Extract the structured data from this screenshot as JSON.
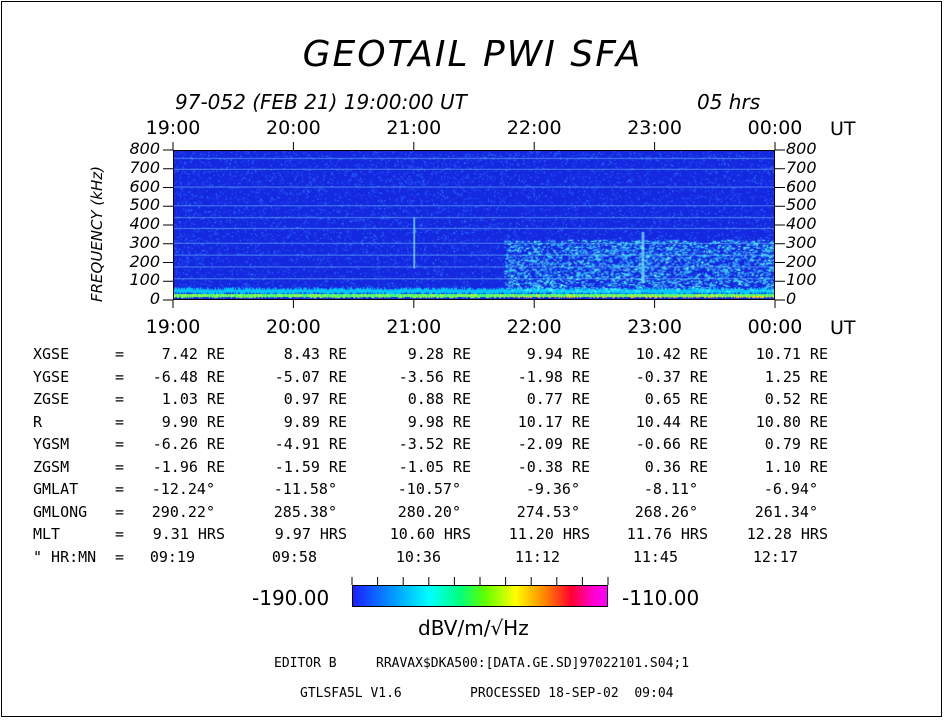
{
  "title": "GEOTAIL PWI SFA",
  "header": {
    "date_line": "97-052 (FEB 21) 19:00:00 UT",
    "duration": "05 hrs"
  },
  "chart_data": {
    "type": "heatmap",
    "title": "GEOTAIL PWI SFA",
    "ylabel": "FREQUENCY (kHz)",
    "xlabel": "UT",
    "x_ticks": [
      "19:00",
      "20:00",
      "21:00",
      "22:00",
      "23:00",
      "00:00"
    ],
    "y_ticks": [
      0,
      100,
      200,
      300,
      400,
      500,
      600,
      700,
      800
    ],
    "ylim": [
      0,
      800
    ],
    "colorbar": {
      "min": "-190.00",
      "max": "-110.00",
      "unit": "dBV/m/√Hz"
    }
  },
  "ephemeris": {
    "unit_re": "RE",
    "rows": [
      {
        "label": "XGSE",
        "values": [
          "7.42 RE",
          "8.43 RE",
          "9.28 RE",
          "9.94 RE",
          "10.42 RE",
          "10.71 RE"
        ]
      },
      {
        "label": "YGSE",
        "values": [
          "-6.48 RE",
          "-5.07 RE",
          "-3.56 RE",
          "-1.98 RE",
          "-0.37 RE",
          "1.25 RE"
        ]
      },
      {
        "label": "ZGSE",
        "values": [
          "1.03 RE",
          "0.97 RE",
          "0.88 RE",
          "0.77 RE",
          "0.65 RE",
          "0.52 RE"
        ]
      },
      {
        "label": "R",
        "values": [
          "9.90 RE",
          "9.89 RE",
          "9.98 RE",
          "10.17 RE",
          "10.44 RE",
          "10.80 RE"
        ]
      },
      {
        "label": "YGSM",
        "values": [
          "-6.26 RE",
          "-4.91 RE",
          "-3.52 RE",
          "-2.09 RE",
          "-0.66 RE",
          "0.79 RE"
        ]
      },
      {
        "label": "ZGSM",
        "values": [
          "-1.96 RE",
          "-1.59 RE",
          "-1.05 RE",
          "-0.38 RE",
          "0.36 RE",
          "1.10 RE"
        ]
      },
      {
        "label": "GMLAT",
        "values": [
          "-12.24°",
          "-11.58°",
          "-10.57°",
          "-9.36°",
          "-8.11°",
          "-6.94°"
        ]
      },
      {
        "label": "GMLONG",
        "values": [
          "290.22°",
          "285.38°",
          "280.20°",
          "274.53°",
          "268.26°",
          "261.34°"
        ]
      },
      {
        "label": "MLT",
        "values": [
          "9.31 HRS",
          "9.97 HRS",
          "10.60 HRS",
          "11.20 HRS",
          "11.76 HRS",
          "12.28 HRS"
        ]
      },
      {
        "label": "\" HR:MN",
        "values": [
          "09:19",
          "09:58",
          "10:36",
          "11:12",
          "11:45",
          "12:17"
        ]
      }
    ]
  },
  "footer": {
    "editor": "EDITOR B",
    "file": "RRAVAX$DKA500:[DATA.GE.SD]97022101.S04;1",
    "program": "GTLSFA5L V1.6",
    "processed": "PROCESSED 18-SEP-02  09:04"
  },
  "colors": {
    "background": "#ffffff",
    "spectrogram_base": "#1428e0"
  }
}
